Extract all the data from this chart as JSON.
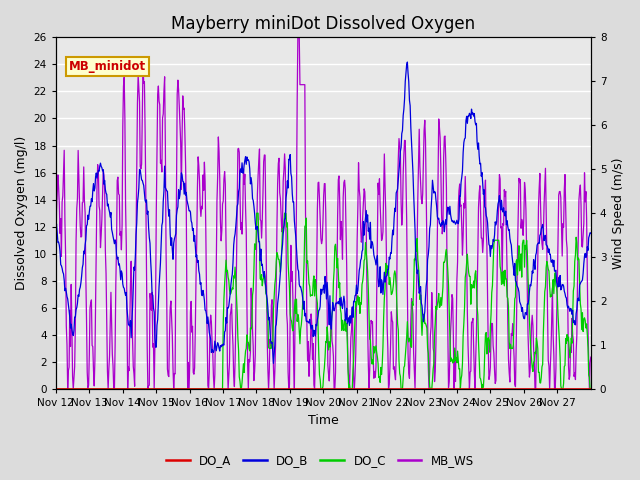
{
  "title": "Mayberry miniDot Dissolved Oxygen",
  "xlabel": "Time",
  "ylabel_left": "Dissolved Oxygen (mg/l)",
  "ylabel_right": "Wind Speed (m/s)",
  "xlim": [
    0,
    16
  ],
  "ylim_left": [
    0,
    26
  ],
  "ylim_right": [
    0,
    8.0
  ],
  "yticks_left": [
    0,
    2,
    4,
    6,
    8,
    10,
    12,
    14,
    16,
    18,
    20,
    22,
    24,
    26
  ],
  "yticks_right": [
    0.0,
    1.0,
    2.0,
    3.0,
    4.0,
    5.0,
    6.0,
    7.0,
    8.0
  ],
  "xtick_labels": [
    "Nov 12",
    "Nov 13",
    "Nov 14",
    "Nov 15",
    "Nov 16",
    "Nov 17",
    "Nov 18",
    "Nov 19",
    "Nov 20",
    "Nov 21",
    "Nov 22",
    "Nov 23",
    "Nov 24",
    "Nov 25",
    "Nov 26",
    "Nov 27"
  ],
  "legend_labels": [
    "DO_A",
    "DO_B",
    "DO_C",
    "MB_WS"
  ],
  "legend_colors": [
    "#dd0000",
    "#0000dd",
    "#00cc00",
    "#aa00cc"
  ],
  "station_label": "MB_minidot",
  "bg_color": "#dcdcdc",
  "plot_bg_color": "#e8e8e8",
  "grid_color": "#ffffff",
  "title_fontsize": 12,
  "axis_label_fontsize": 9,
  "tick_fontsize": 7.5
}
